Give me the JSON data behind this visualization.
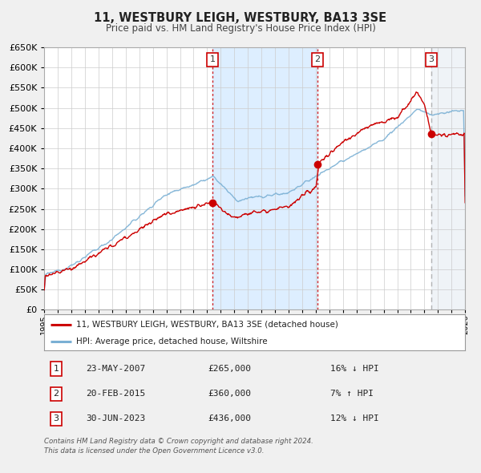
{
  "title": "11, WESTBURY LEIGH, WESTBURY, BA13 3SE",
  "subtitle": "Price paid vs. HM Land Registry's House Price Index (HPI)",
  "legend_label_red": "11, WESTBURY LEIGH, WESTBURY, BA13 3SE (detached house)",
  "legend_label_blue": "HPI: Average price, detached house, Wiltshire",
  "footer1": "Contains HM Land Registry data © Crown copyright and database right 2024.",
  "footer2": "This data is licensed under the Open Government Licence v3.0.",
  "sale_points": [
    {
      "num": 1,
      "date": "23-MAY-2007",
      "price": 265000,
      "x": 2007.38,
      "hpi_text": "16% ↓ HPI"
    },
    {
      "num": 2,
      "date": "20-FEB-2015",
      "price": 360000,
      "x": 2015.13,
      "hpi_text": "7% ↑ HPI"
    },
    {
      "num": 3,
      "date": "30-JUN-2023",
      "price": 436000,
      "x": 2023.5,
      "hpi_text": "12% ↓ HPI"
    }
  ],
  "ylim": [
    0,
    650000
  ],
  "xlim": [
    1995,
    2026
  ],
  "yticks": [
    0,
    50000,
    100000,
    150000,
    200000,
    250000,
    300000,
    350000,
    400000,
    450000,
    500000,
    550000,
    600000,
    650000
  ],
  "xticks": [
    1995,
    1996,
    1997,
    1998,
    1999,
    2000,
    2001,
    2002,
    2003,
    2004,
    2005,
    2006,
    2007,
    2008,
    2009,
    2010,
    2011,
    2012,
    2013,
    2014,
    2015,
    2016,
    2017,
    2018,
    2019,
    2020,
    2021,
    2022,
    2023,
    2024,
    2025,
    2026
  ],
  "red_color": "#cc0000",
  "blue_color": "#7ab0d4",
  "sale_marker_color": "#cc0000",
  "vline_color_solid": "#cc0000",
  "vline_color_dashed": "#aaaaaa",
  "shaded_color": "#ddeeff",
  "hatched_color": "#e8e8e8",
  "grid_color": "#cccccc",
  "background_color": "#f0f0f0",
  "chart_bg": "#ffffff",
  "table_bg": "#ffffff"
}
